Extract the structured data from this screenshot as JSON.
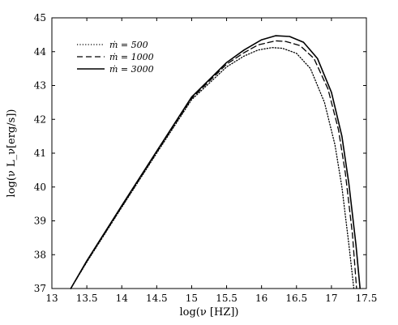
{
  "chart_data": {
    "type": "line",
    "xlabel": "log(ν [HZ])",
    "ylabel": "log(ν L_ν[erg/s])",
    "xlim": [
      13,
      17.5
    ],
    "ylim": [
      37,
      45
    ],
    "x_ticks": [
      13,
      13.5,
      14,
      14.5,
      15,
      15.5,
      16,
      16.5,
      17,
      17.5
    ],
    "y_ticks": [
      37,
      38,
      39,
      40,
      41,
      42,
      43,
      44,
      45
    ],
    "grid": false,
    "legend_position": "top-left",
    "series": [
      {
        "name": "ṁ = 500",
        "style": "dotted",
        "color": "#000000",
        "x": [
          13.27,
          13.5,
          14.0,
          14.5,
          15.0,
          15.5,
          15.75,
          15.95,
          16.15,
          16.3,
          16.5,
          16.7,
          16.9,
          17.05,
          17.15,
          17.25,
          17.32
        ],
        "y": [
          37.0,
          37.78,
          39.4,
          41.0,
          42.58,
          43.55,
          43.87,
          44.05,
          44.12,
          44.1,
          43.95,
          43.5,
          42.5,
          41.25,
          40.0,
          38.3,
          37.0
        ]
      },
      {
        "name": "ṁ = 1000",
        "style": "dashed",
        "color": "#000000",
        "x": [
          13.27,
          13.5,
          14.0,
          14.5,
          15.0,
          15.5,
          15.75,
          15.95,
          16.2,
          16.35,
          16.55,
          16.75,
          16.95,
          17.1,
          17.2,
          17.3,
          17.36
        ],
        "y": [
          37.0,
          37.8,
          39.42,
          41.03,
          42.62,
          43.63,
          43.97,
          44.2,
          44.32,
          44.3,
          44.18,
          43.8,
          42.9,
          41.7,
          40.4,
          38.6,
          37.0
        ]
      },
      {
        "name": "ṁ = 3000",
        "style": "solid",
        "color": "#000000",
        "x": [
          13.27,
          13.5,
          14.0,
          14.5,
          15.0,
          15.5,
          15.75,
          16.0,
          16.2,
          16.4,
          16.6,
          16.8,
          17.0,
          17.15,
          17.25,
          17.35,
          17.41
        ],
        "y": [
          37.0,
          37.82,
          39.45,
          41.06,
          42.66,
          43.68,
          44.05,
          44.35,
          44.47,
          44.45,
          44.28,
          43.8,
          42.8,
          41.5,
          40.1,
          38.3,
          37.0
        ]
      }
    ]
  }
}
